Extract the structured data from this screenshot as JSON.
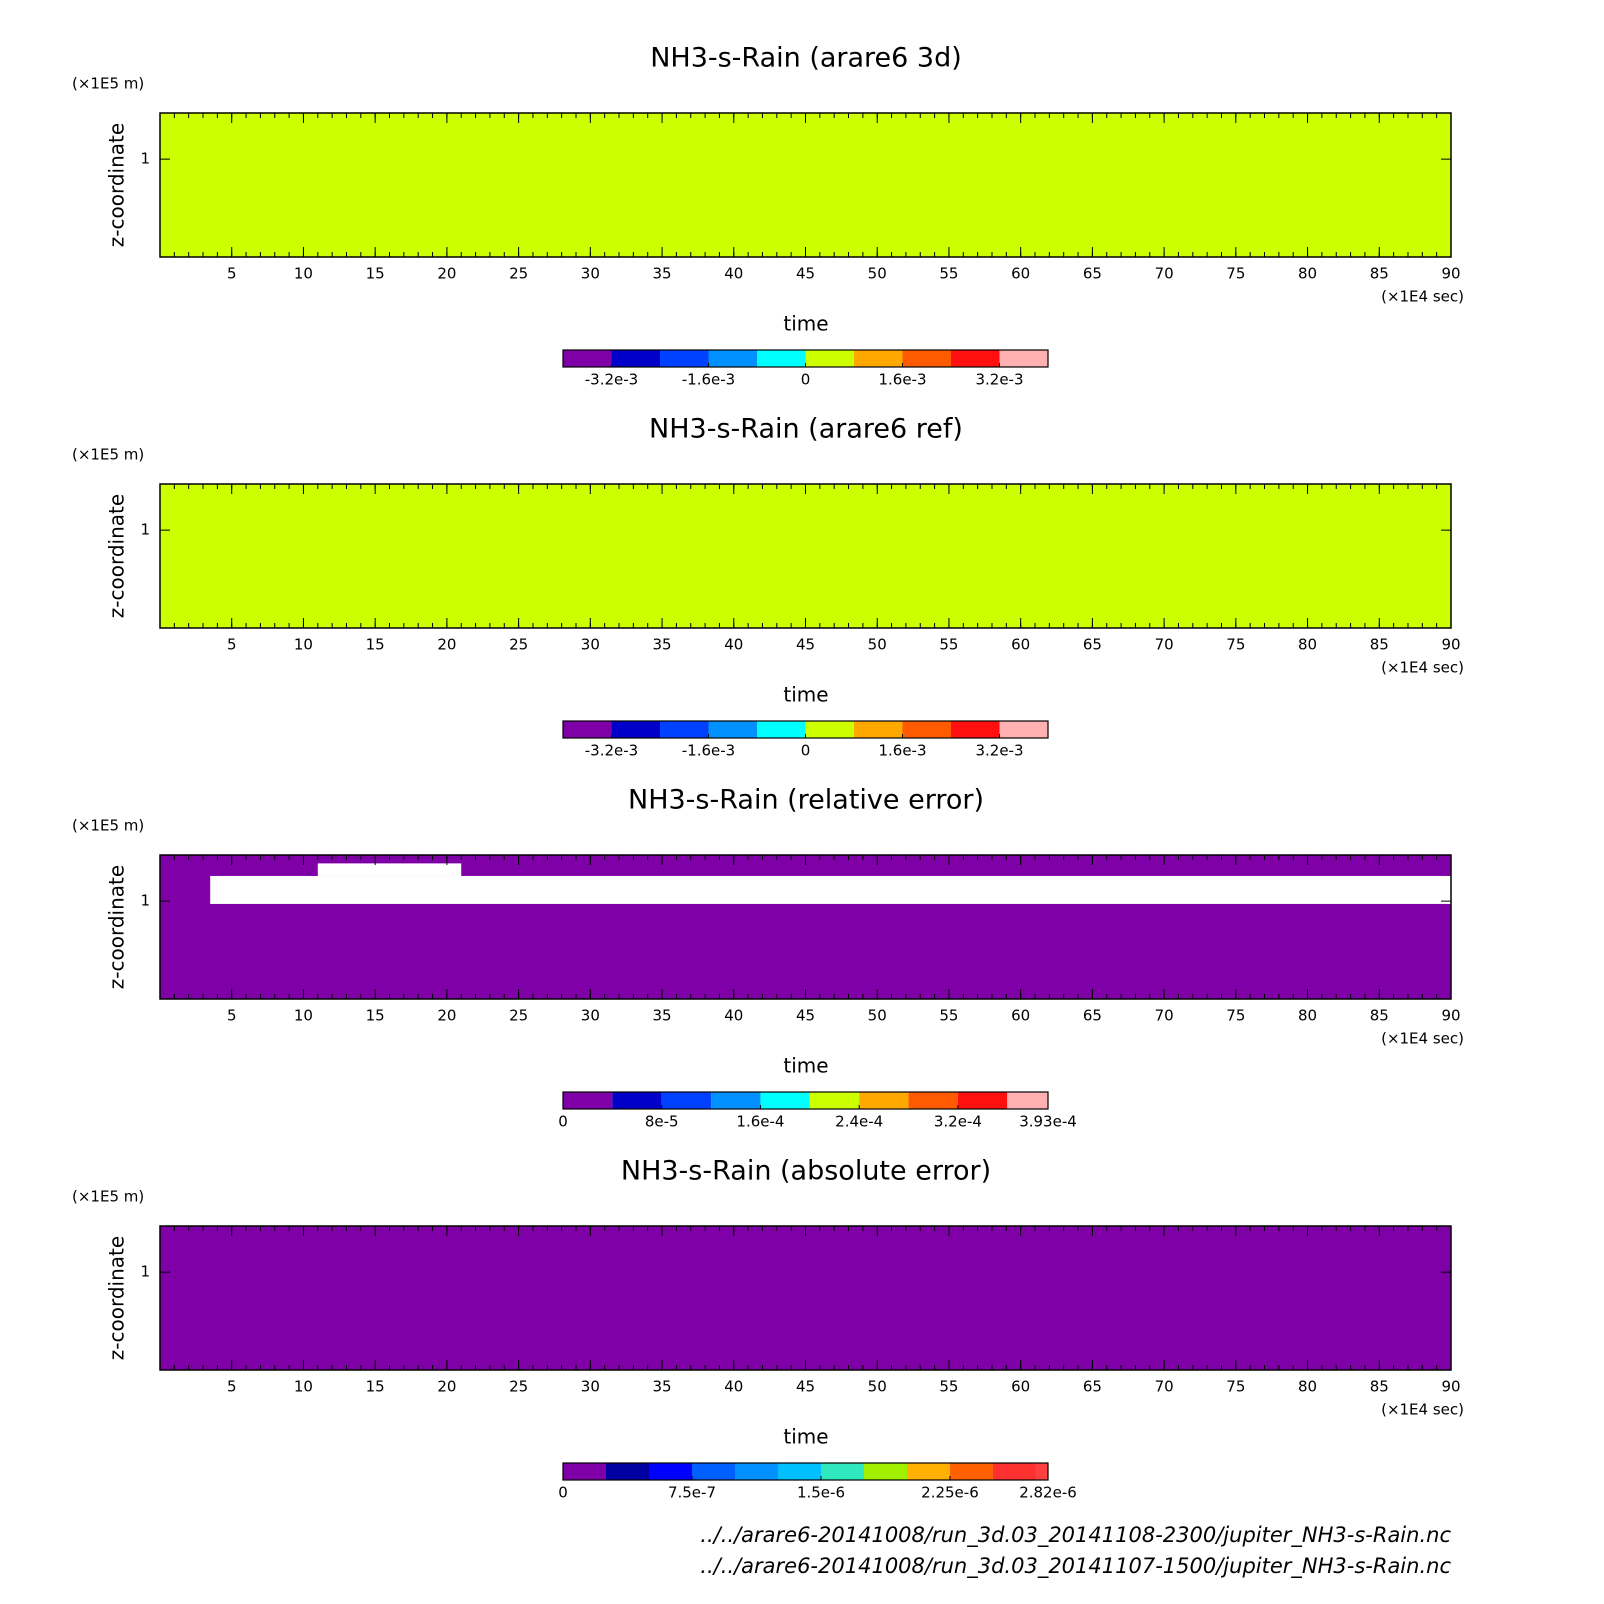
{
  "chart_data": [
    {
      "type": "heatmap",
      "title": "NH3-s-Rain (arare6 3d)",
      "x_label": "time",
      "y_label": "z-coordinate",
      "x_unit": "(×1E4 sec)",
      "y_unit": "(×1E5 m)",
      "xlim": [
        0,
        90
      ],
      "xticks": [
        5,
        10,
        15,
        20,
        25,
        30,
        35,
        40,
        45,
        50,
        55,
        60,
        65,
        70,
        75,
        80,
        85,
        90
      ],
      "ylim": [
        0.3,
        1.33
      ],
      "yticks": [
        1
      ],
      "regions": [
        {
          "x": [
            0,
            90
          ],
          "y": [
            0.3,
            1.33
          ],
          "value": 0
        }
      ],
      "colorbar": {
        "levels": [
          -0.004,
          -0.0032,
          -0.0024,
          -0.0016,
          -0.0008,
          0,
          0.0008,
          0.0016,
          0.0024,
          0.0032,
          0.004
        ],
        "colors": [
          "#8000a8",
          "#0000c8",
          "#0040ff",
          "#0090ff",
          "#00ffff",
          "#ccff00",
          "#ffa800",
          "#ff5a00",
          "#ff1010",
          "#ffb0b0"
        ],
        "ticks": [
          {
            "value": -0.0032,
            "label": "-3.2e-3"
          },
          {
            "value": -0.0016,
            "label": "-1.6e-3"
          },
          0,
          {
            "value": 0.0016,
            "label": "1.6e-3"
          },
          {
            "value": 0.0032,
            "label": "3.2e-3"
          }
        ]
      }
    },
    {
      "type": "heatmap",
      "title": "NH3-s-Rain (arare6 ref)",
      "x_label": "time",
      "y_label": "z-coordinate",
      "x_unit": "(×1E4 sec)",
      "y_unit": "(×1E5 m)",
      "xlim": [
        0,
        90
      ],
      "xticks": [
        5,
        10,
        15,
        20,
        25,
        30,
        35,
        40,
        45,
        50,
        55,
        60,
        65,
        70,
        75,
        80,
        85,
        90
      ],
      "ylim": [
        0.3,
        1.33
      ],
      "yticks": [
        1
      ],
      "regions": [
        {
          "x": [
            0,
            90
          ],
          "y": [
            0.3,
            1.33
          ],
          "value": 0
        }
      ],
      "colorbar": {
        "levels": [
          -0.004,
          -0.0032,
          -0.0024,
          -0.0016,
          -0.0008,
          0,
          0.0008,
          0.0016,
          0.0024,
          0.0032,
          0.004
        ],
        "colors": [
          "#8000a8",
          "#0000c8",
          "#0040ff",
          "#0090ff",
          "#00ffff",
          "#ccff00",
          "#ffa800",
          "#ff5a00",
          "#ff1010",
          "#ffb0b0"
        ],
        "ticks": [
          {
            "value": -0.0032,
            "label": "-3.2e-3"
          },
          {
            "value": -0.0016,
            "label": "-1.6e-3"
          },
          0,
          {
            "value": 0.0016,
            "label": "1.6e-3"
          },
          {
            "value": 0.0032,
            "label": "3.2e-3"
          }
        ]
      }
    },
    {
      "type": "heatmap",
      "title": "NH3-s-Rain (relative error)",
      "x_label": "time",
      "y_label": "z-coordinate",
      "x_unit": "(×1E4 sec)",
      "y_unit": "(×1E5 m)",
      "xlim": [
        0,
        90
      ],
      "xticks": [
        5,
        10,
        15,
        20,
        25,
        30,
        35,
        40,
        45,
        50,
        55,
        60,
        65,
        70,
        75,
        80,
        85,
        90
      ],
      "ylim": [
        0.3,
        1.33
      ],
      "yticks": [
        1
      ],
      "regions": [
        {
          "x": [
            0,
            90
          ],
          "y": [
            0.3,
            1.33
          ],
          "value": 0
        },
        {
          "x": [
            3.5,
            90
          ],
          "y": [
            0.98,
            1.18
          ],
          "value": null
        },
        {
          "x": [
            11,
            21
          ],
          "y": [
            1.18,
            1.27
          ],
          "value": null
        }
      ],
      "colorbar": {
        "levels": [
          0,
          4e-05,
          8e-05,
          0.00012,
          0.00016,
          0.0002,
          0.00024,
          0.00028,
          0.00032,
          0.00036,
          0.000393
        ],
        "colors": [
          "#8000a8",
          "#0000c8",
          "#0040ff",
          "#0090ff",
          "#00ffff",
          "#ccff00",
          "#ffa800",
          "#ff5a00",
          "#ff1010",
          "#ffb0b0"
        ],
        "ticks": [
          0,
          {
            "value": 8e-05,
            "label": "8e-5"
          },
          {
            "value": 0.00016,
            "label": "1.6e-4"
          },
          {
            "value": 0.00024,
            "label": "2.4e-4"
          },
          {
            "value": 0.00032,
            "label": "3.2e-4"
          },
          {
            "value": 0.000393,
            "label": "3.93e-4"
          }
        ]
      }
    },
    {
      "type": "heatmap",
      "title": "NH3-s-Rain (absolute error)",
      "x_label": "time",
      "y_label": "z-coordinate",
      "x_unit": "(×1E4 sec)",
      "y_unit": "(×1E5 m)",
      "xlim": [
        0,
        90
      ],
      "xticks": [
        5,
        10,
        15,
        20,
        25,
        30,
        35,
        40,
        45,
        50,
        55,
        60,
        65,
        70,
        75,
        80,
        85,
        90
      ],
      "ylim": [
        0.3,
        1.33
      ],
      "yticks": [
        1
      ],
      "regions": [
        {
          "x": [
            0,
            90
          ],
          "y": [
            0.3,
            1.33
          ],
          "value": 0
        }
      ],
      "colorbar": {
        "levels": [
          0,
          2.5e-07,
          5e-07,
          7.5e-07,
          1e-06,
          1.25e-06,
          1.5e-06,
          1.75e-06,
          2e-06,
          2.25e-06,
          2.5e-06,
          2.75e-06,
          2.82e-06
        ],
        "colors": [
          "#8000a8",
          "#0000a0",
          "#0000ff",
          "#0060ff",
          "#0090ff",
          "#00c0ff",
          "#30e8c0",
          "#a0f000",
          "#ffb000",
          "#ff6000",
          "#ff3030",
          "#ff4040"
        ],
        "ticks": [
          0,
          {
            "value": 7.5e-07,
            "label": "7.5e-7"
          },
          {
            "value": 1.5e-06,
            "label": "1.5e-6"
          },
          {
            "value": 2.25e-06,
            "label": "2.25e-6"
          },
          {
            "value": 2.82e-06,
            "label": "2.82e-6"
          }
        ]
      }
    }
  ],
  "footer": {
    "files": [
      "../../arare6-20141008/run_3d.03_20141108-2300/jupiter_NH3-s-Rain.nc",
      "../../arare6-20141008/run_3d.03_20141107-1500/jupiter_NH3-s-Rain.nc"
    ]
  }
}
